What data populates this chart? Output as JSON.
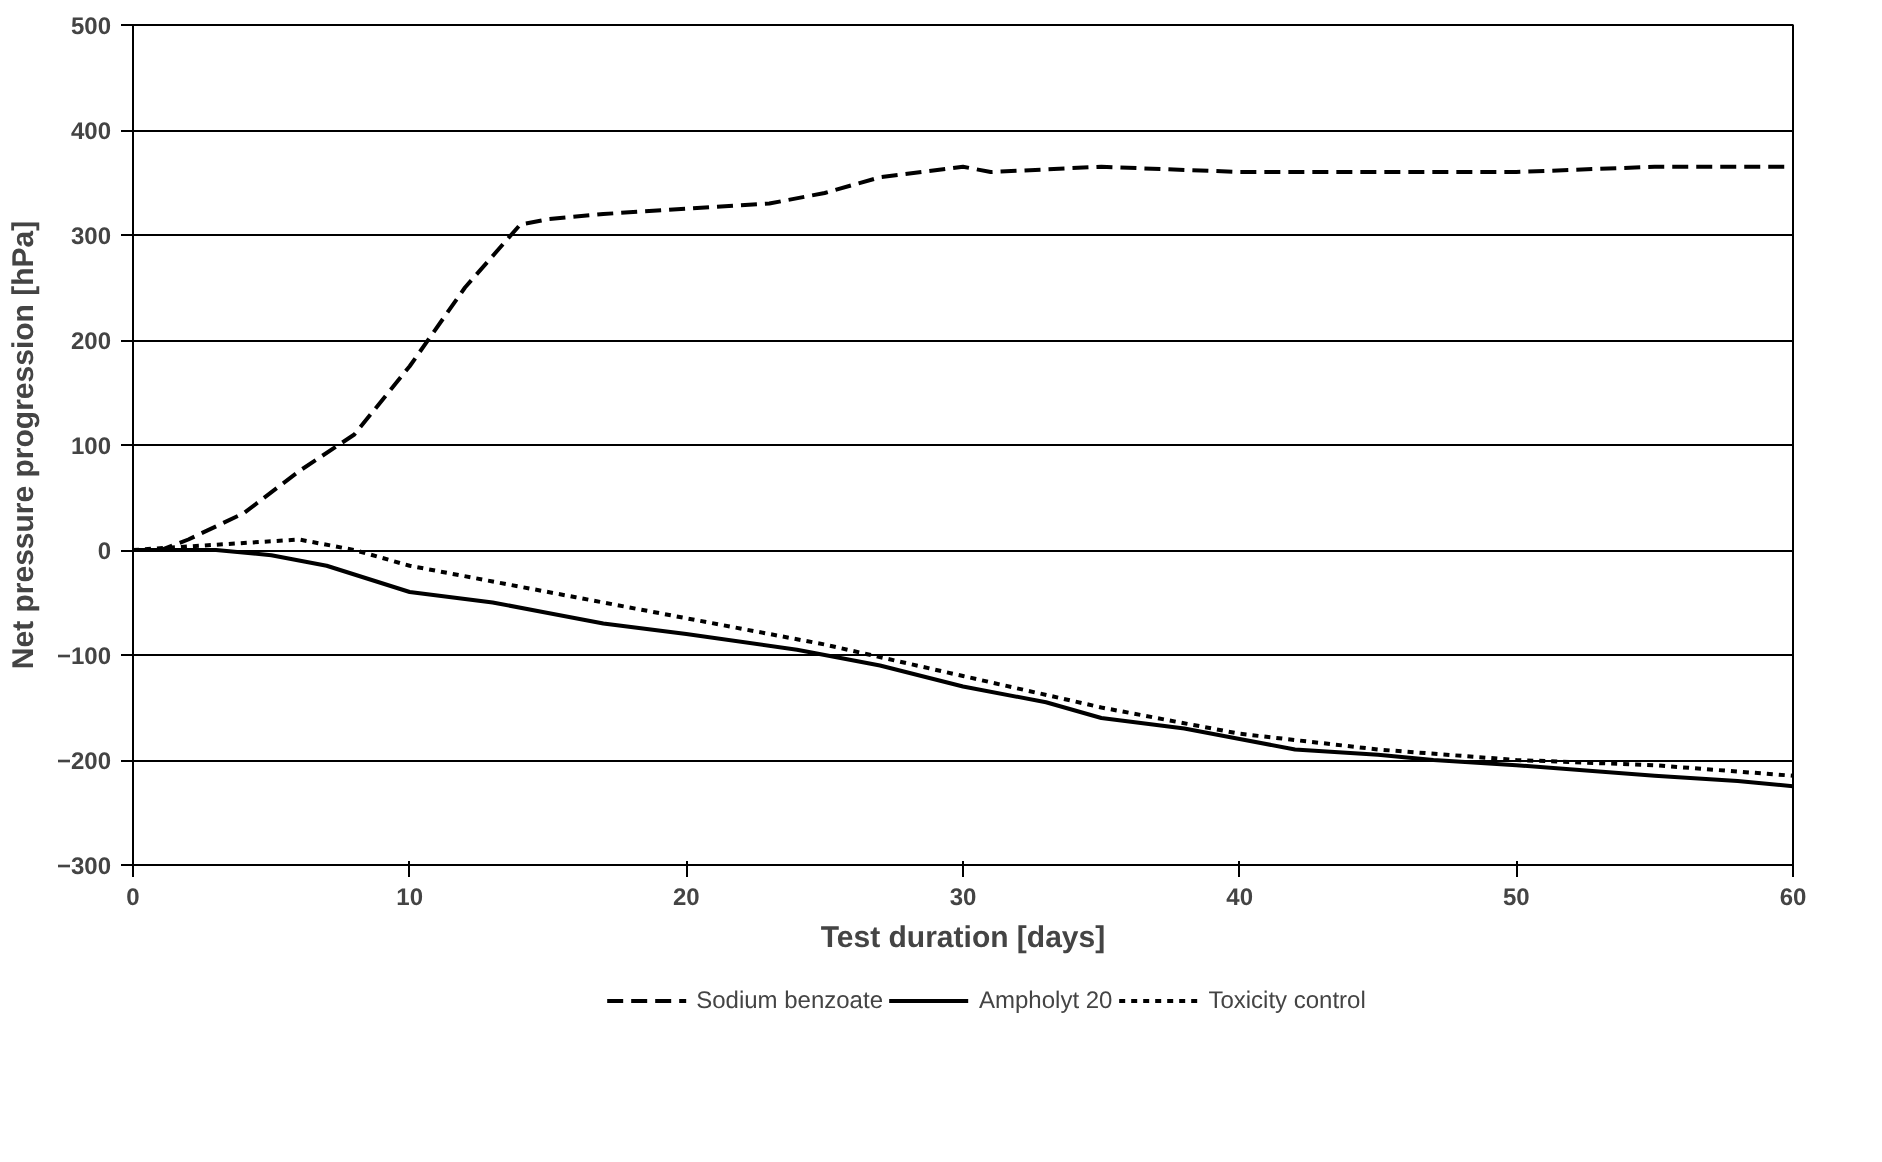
{
  "chart_data": {
    "type": "line",
    "xlabel": "Test duration [days]",
    "ylabel": "Net pressure progression [hPa]",
    "xlim": [
      0,
      60
    ],
    "xticks": [
      0,
      10,
      20,
      30,
      40,
      50,
      60
    ],
    "ylim": [
      -300,
      500
    ],
    "yticks": [
      -300,
      -200,
      -100,
      0,
      100,
      200,
      300,
      400,
      500
    ],
    "grid": "y",
    "legend": "bottom",
    "marker": "none",
    "series": [
      {
        "name": "Sodium benzoate",
        "color": "#000000",
        "line_style": "dashed",
        "x": [
          0,
          1,
          2,
          4,
          6,
          8,
          10,
          12,
          14,
          15,
          17,
          20,
          23,
          25,
          27,
          30,
          31,
          35,
          40,
          45,
          50,
          55,
          60
        ],
        "values": [
          0,
          0,
          10,
          35,
          75,
          110,
          175,
          250,
          310,
          315,
          320,
          325,
          330,
          340,
          355,
          365,
          360,
          365,
          360,
          360,
          360,
          365,
          365
        ]
      },
      {
        "name": "Ampholyt 20",
        "color": "#000000",
        "line_style": "solid",
        "x": [
          0,
          3,
          5,
          7,
          10,
          13,
          15,
          17,
          20,
          24,
          27,
          30,
          33,
          35,
          38,
          40,
          42,
          45,
          47,
          50,
          55,
          58,
          60
        ],
        "values": [
          0,
          0,
          -5,
          -15,
          -40,
          -50,
          -60,
          -70,
          -80,
          -95,
          -110,
          -130,
          -145,
          -160,
          -170,
          -180,
          -190,
          -195,
          -200,
          -205,
          -215,
          -220,
          -225
        ]
      },
      {
        "name": "Toxicity control",
        "color": "#000000",
        "line_style": "dotted",
        "x": [
          0,
          3,
          6,
          8,
          10,
          13,
          16,
          20,
          25,
          30,
          35,
          40,
          45,
          50,
          55,
          60
        ],
        "values": [
          0,
          5,
          10,
          0,
          -15,
          -30,
          -45,
          -65,
          -90,
          -120,
          -150,
          -175,
          -190,
          -200,
          -205,
          -215
        ]
      }
    ]
  }
}
